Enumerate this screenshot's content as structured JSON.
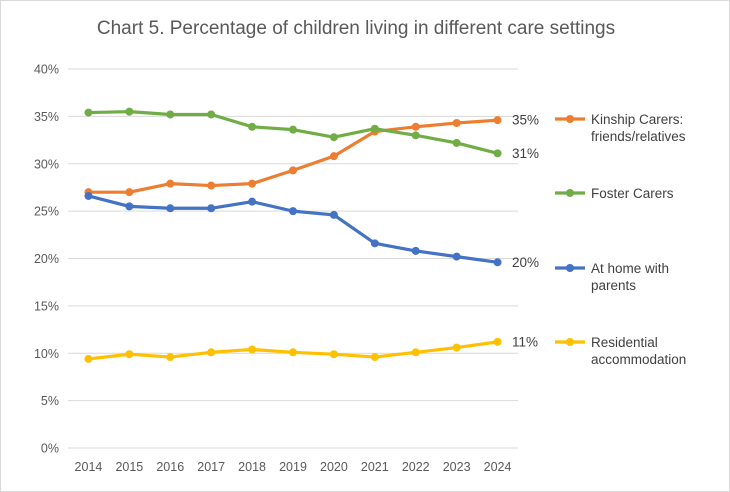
{
  "chart_data": {
    "type": "line",
    "title": "Chart 5. Percentage of children living in different care settings",
    "xlabel": "",
    "ylabel": "",
    "x": [
      "2014",
      "2015",
      "2016",
      "2017",
      "2018",
      "2019",
      "2020",
      "2021",
      "2022",
      "2023",
      "2024"
    ],
    "ylim": [
      0,
      40
    ],
    "yticks": [
      0,
      5,
      10,
      15,
      20,
      25,
      30,
      35,
      40
    ],
    "ytick_labels": [
      "0%",
      "5%",
      "10%",
      "15%",
      "20%",
      "25%",
      "30%",
      "35%",
      "40%"
    ],
    "grid": true,
    "legend_position": "right",
    "series": [
      {
        "key": "kinship",
        "name_lines": [
          "Kinship Carers:",
          "friends/relatives"
        ],
        "color": "#ED7D31",
        "values": [
          27.0,
          27.0,
          27.9,
          27.7,
          27.9,
          29.3,
          30.8,
          33.4,
          33.9,
          34.3,
          34.6
        ],
        "end_label": "35%"
      },
      {
        "key": "foster",
        "name_lines": [
          "Foster Carers"
        ],
        "color": "#70AD47",
        "values": [
          35.4,
          35.5,
          35.2,
          35.2,
          33.9,
          33.6,
          32.8,
          33.7,
          33.0,
          32.2,
          31.1
        ],
        "end_label": "31%"
      },
      {
        "key": "home",
        "name_lines": [
          "At home with",
          "parents"
        ],
        "color": "#4472C4",
        "values": [
          26.6,
          25.5,
          25.3,
          25.3,
          26.0,
          25.0,
          24.6,
          21.6,
          20.8,
          20.2,
          19.6
        ],
        "end_label": "20%"
      },
      {
        "key": "residential",
        "name_lines": [
          "Residential",
          "accommodation"
        ],
        "color": "#FFC000",
        "values": [
          9.4,
          9.9,
          9.6,
          10.1,
          10.4,
          10.1,
          9.9,
          9.6,
          10.1,
          10.6,
          11.2
        ],
        "end_label": "11%"
      }
    ]
  }
}
